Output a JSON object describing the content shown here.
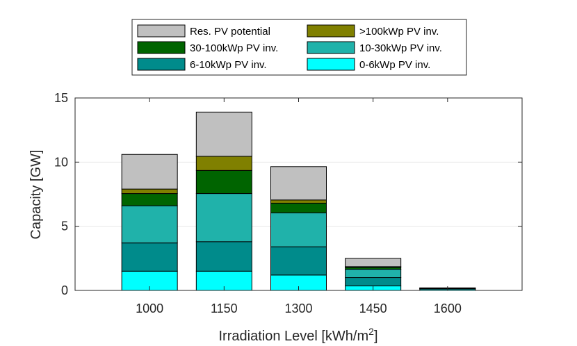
{
  "chart_data": {
    "type": "bar",
    "stacked": true,
    "categories": [
      "1000",
      "1150",
      "1300",
      "1450",
      "1600"
    ],
    "x_values": [
      1000,
      1150,
      1300,
      1450,
      1600
    ],
    "xlim": [
      850,
      1750
    ],
    "ylim": [
      0,
      15
    ],
    "yticks": [
      "0",
      "5",
      "10",
      "15"
    ],
    "ytick_values": [
      0,
      5,
      10,
      15
    ],
    "xlabel": "Irradiation Level [kWh/m",
    "xlabel_sup": "2",
    "xlabel_end": "]",
    "ylabel": "Capacity [GW]",
    "grid": "y",
    "legend_position": "top-center",
    "series": [
      {
        "name": "0-6kWp PV inv.",
        "color": "#00ffff",
        "values": [
          1.5,
          1.5,
          1.2,
          0.35,
          0.1
        ]
      },
      {
        "name": "6-10kWp PV inv.",
        "color": "#008b8b",
        "values": [
          2.2,
          2.3,
          2.2,
          0.65,
          0.05
        ]
      },
      {
        "name": "10-30kWp PV inv.",
        "color": "#20b2aa",
        "values": [
          2.9,
          3.75,
          2.65,
          0.65,
          0.02
        ]
      },
      {
        "name": "30-100kWp PV inv.",
        "color": "#006400",
        "values": [
          0.95,
          1.8,
          0.75,
          0.15,
          0.01
        ]
      },
      {
        "name": ">100kWp PV inv.",
        "color": "#808000",
        "values": [
          0.35,
          1.1,
          0.25,
          0.05,
          0.01
        ]
      },
      {
        "name": "Res. PV potential",
        "color": "#c0c0c0",
        "values": [
          2.7,
          3.45,
          2.6,
          0.65,
          0.01
        ]
      }
    ],
    "legend_order": [
      "Res. PV potential",
      ">100kWp PV inv.",
      "30-100kWp PV inv.",
      "10-30kWp PV inv.",
      "6-10kWp PV inv.",
      "0-6kWp PV inv."
    ]
  }
}
